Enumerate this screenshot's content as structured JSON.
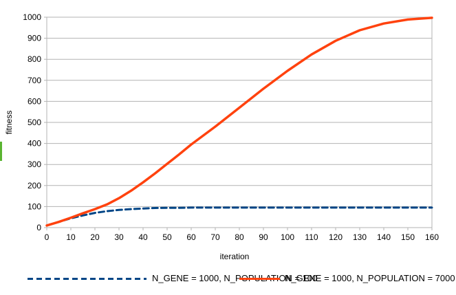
{
  "chart_data": {
    "type": "line",
    "title": "",
    "xlabel": "iteration",
    "ylabel": "fitness",
    "xlim": [
      0,
      160
    ],
    "ylim": [
      0,
      1000
    ],
    "x_ticks": [
      "0",
      "10",
      "20",
      "30",
      "40",
      "50",
      "60",
      "70",
      "80",
      "90",
      "100",
      "110",
      "120",
      "130",
      "140",
      "150",
      "160"
    ],
    "y_ticks": [
      "0",
      "100",
      "200",
      "300",
      "400",
      "500",
      "600",
      "700",
      "800",
      "900",
      "1000"
    ],
    "grid": "horizontal gridlines on, plot border on",
    "grid_color": "#b3b3b3",
    "axis_color": "#b3b3b3",
    "text_color": "#000000",
    "legend_position": "bottom",
    "x_shared": [
      0,
      5,
      10,
      15,
      20,
      25,
      30,
      35,
      40,
      45,
      50,
      55,
      60,
      70,
      80,
      90,
      100,
      110,
      120,
      130,
      140,
      150,
      160
    ],
    "series": [
      {
        "name": "N_GENE = 1000, N_POPULATION = 100",
        "color": "#004586",
        "style": "dashed",
        "stroke_width": 3,
        "values": [
          10,
          27,
          44,
          58,
          70,
          78,
          84,
          88,
          91,
          93,
          94,
          94,
          95,
          95,
          95,
          95,
          95,
          95,
          95,
          95,
          95,
          95,
          95
        ]
      },
      {
        "name": "N_GENE = 1000, N_POPULATION = 7000",
        "color": "#FF420E",
        "style": "solid",
        "stroke_width": 3.5,
        "values": [
          10,
          27,
          47,
          68,
          88,
          110,
          140,
          175,
          215,
          258,
          303,
          348,
          395,
          480,
          570,
          660,
          745,
          823,
          888,
          938,
          970,
          989,
          997
        ]
      }
    ]
  },
  "decorations": {
    "edge_artifact_color": "#5ab431"
  }
}
